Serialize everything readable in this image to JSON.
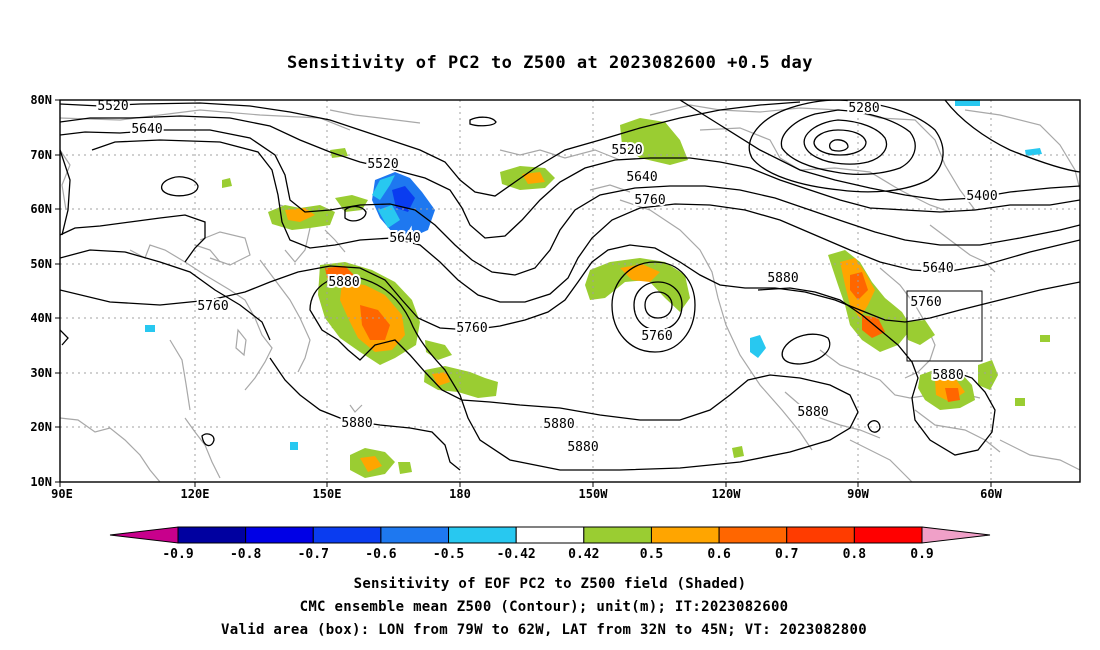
{
  "title": "Sensitivity of PC2 to Z500 at 2023082600 +0.5 day",
  "lon_labels": [
    "90E",
    "120E",
    "150E",
    "180",
    "150W",
    "120W",
    "90W",
    "60W"
  ],
  "lat_labels": [
    "80N",
    "70N",
    "60N",
    "50N",
    "40N",
    "30N",
    "20N",
    "10N"
  ],
  "contour_labels": [
    "5520",
    "5640",
    "5520",
    "5640",
    "5880",
    "5760",
    "5760",
    "5520",
    "5640",
    "5760",
    "5760",
    "5880",
    "5880",
    "5880",
    "5880",
    "5280",
    "5400",
    "5640",
    "5760",
    "5880",
    "5880"
  ],
  "colorbar": {
    "labels": [
      "-0.9",
      "-0.8",
      "-0.7",
      "-0.6",
      "-0.5",
      "-0.42",
      "0.42",
      "0.5",
      "0.6",
      "0.7",
      "0.8",
      "0.9"
    ],
    "colors": [
      "#0000a0",
      "#0000e6",
      "#0a3cf0",
      "#1e78f0",
      "#28c8f0",
      "#ffffff",
      "#9acd32",
      "#ffa500",
      "#ff6600",
      "#ff3c00",
      "#ff0000"
    ],
    "low_color": "#c8008c",
    "high_color": "#f0a0c8"
  },
  "footer": {
    "line1": "Sensitivity of EOF PC2 to Z500 field (Shaded)",
    "line2": "CMC ensemble mean Z500 (Contour); unit(m); IT:2023082600",
    "line3": "Valid area (box): LON from 79W to 62W, LAT from 32N to 45N; VT: 2023082800"
  }
}
